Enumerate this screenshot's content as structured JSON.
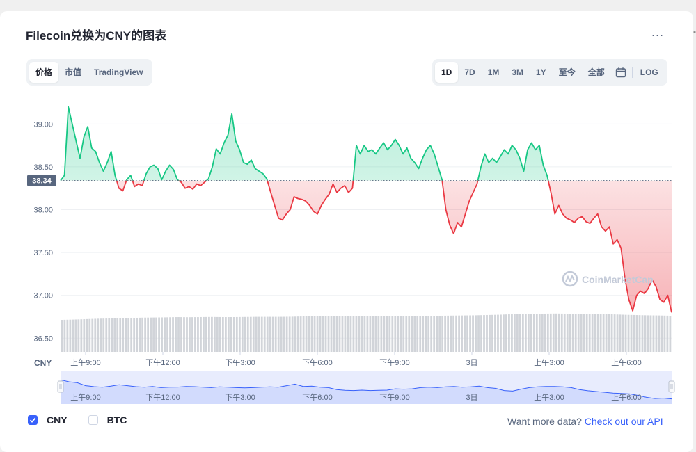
{
  "header": {
    "title": "Filecoin兑换为CNY的图表",
    "more_label": "..."
  },
  "edge_mark": "-",
  "view_tabs": [
    {
      "label": "价格",
      "active": true
    },
    {
      "label": "市值",
      "active": false
    },
    {
      "label": "TradingView",
      "active": false
    }
  ],
  "range_tabs": [
    {
      "label": "1D",
      "active": true
    },
    {
      "label": "7D",
      "active": false
    },
    {
      "label": "1M",
      "active": false
    },
    {
      "label": "3M",
      "active": false
    },
    {
      "label": "1Y",
      "active": false
    },
    {
      "label": "至今",
      "active": false
    },
    {
      "label": "全部",
      "active": false
    }
  ],
  "calendar_icon": "calendar-icon",
  "log_label": "LOG",
  "chart_data": {
    "type": "line",
    "currency_label": "CNY",
    "yticks": [
      "39.00",
      "38.50",
      "38.00",
      "37.50",
      "37.00",
      "36.50"
    ],
    "ylim": [
      36.34,
      39.23
    ],
    "reference_value": 38.34,
    "reference_label": "38.34",
    "xtick_labels": [
      "上午9:00",
      "下午12:00",
      "下午3:00",
      "下午6:00",
      "下午9:00",
      "3日",
      "上午3:00",
      "上午6:00"
    ],
    "watermark": "CoinMarketCap",
    "colors": {
      "up": "#16c784",
      "down": "#ea3943",
      "volume": "#c9ccd2",
      "navigator": "#3861fb"
    },
    "series": {
      "price": [
        [
          0,
          38.34
        ],
        [
          0.6,
          38.4
        ],
        [
          1.2,
          39.2
        ],
        [
          1.8,
          39.0
        ],
        [
          2.4,
          38.8
        ],
        [
          3.0,
          38.6
        ],
        [
          3.6,
          38.85
        ],
        [
          4.2,
          38.97
        ],
        [
          4.8,
          38.72
        ],
        [
          5.4,
          38.68
        ],
        [
          6.0,
          38.55
        ],
        [
          6.6,
          38.45
        ],
        [
          7.2,
          38.55
        ],
        [
          7.8,
          38.68
        ],
        [
          8.4,
          38.4
        ],
        [
          9.0,
          38.25
        ],
        [
          9.6,
          38.22
        ],
        [
          10.2,
          38.35
        ],
        [
          10.8,
          38.4
        ],
        [
          11.4,
          38.27
        ],
        [
          12.0,
          38.3
        ],
        [
          12.6,
          38.28
        ],
        [
          13.2,
          38.42
        ],
        [
          13.8,
          38.5
        ],
        [
          14.4,
          38.52
        ],
        [
          15.0,
          38.48
        ],
        [
          15.6,
          38.35
        ],
        [
          16.2,
          38.45
        ],
        [
          16.8,
          38.52
        ],
        [
          17.4,
          38.47
        ],
        [
          18.0,
          38.35
        ],
        [
          18.6,
          38.32
        ],
        [
          19.2,
          38.25
        ],
        [
          19.8,
          38.27
        ],
        [
          20.4,
          38.24
        ],
        [
          21.0,
          38.3
        ],
        [
          21.6,
          38.28
        ],
        [
          22.2,
          38.32
        ],
        [
          22.8,
          38.36
        ],
        [
          23.4,
          38.5
        ],
        [
          24.0,
          38.71
        ],
        [
          24.6,
          38.65
        ],
        [
          25.2,
          38.78
        ],
        [
          25.8,
          38.87
        ],
        [
          26.4,
          39.12
        ],
        [
          27.0,
          38.8
        ],
        [
          27.6,
          38.7
        ],
        [
          28.2,
          38.55
        ],
        [
          28.8,
          38.53
        ],
        [
          29.4,
          38.58
        ],
        [
          30.0,
          38.48
        ],
        [
          30.6,
          38.45
        ],
        [
          31.2,
          38.42
        ],
        [
          31.8,
          38.36
        ],
        [
          32.4,
          38.2
        ],
        [
          33.0,
          38.05
        ],
        [
          33.6,
          37.9
        ],
        [
          34.2,
          37.88
        ],
        [
          34.8,
          37.95
        ],
        [
          35.4,
          38.0
        ],
        [
          36.0,
          38.15
        ],
        [
          36.6,
          38.13
        ],
        [
          37.2,
          38.12
        ],
        [
          37.8,
          38.1
        ],
        [
          38.4,
          38.05
        ],
        [
          39.0,
          37.98
        ],
        [
          39.6,
          37.95
        ],
        [
          40.2,
          38.05
        ],
        [
          40.8,
          38.12
        ],
        [
          41.4,
          38.18
        ],
        [
          42.0,
          38.3
        ],
        [
          42.6,
          38.2
        ],
        [
          43.2,
          38.25
        ],
        [
          43.8,
          38.28
        ],
        [
          44.4,
          38.2
        ],
        [
          45.0,
          38.25
        ],
        [
          45.6,
          38.75
        ],
        [
          46.2,
          38.65
        ],
        [
          46.8,
          38.75
        ],
        [
          47.4,
          38.68
        ],
        [
          48.0,
          38.7
        ],
        [
          48.6,
          38.65
        ],
        [
          49.2,
          38.72
        ],
        [
          49.8,
          38.78
        ],
        [
          50.4,
          38.7
        ],
        [
          51.0,
          38.75
        ],
        [
          51.6,
          38.82
        ],
        [
          52.2,
          38.75
        ],
        [
          52.8,
          38.65
        ],
        [
          53.4,
          38.72
        ],
        [
          54.0,
          38.6
        ],
        [
          54.6,
          38.55
        ],
        [
          55.2,
          38.48
        ],
        [
          55.8,
          38.6
        ],
        [
          56.4,
          38.7
        ],
        [
          57.0,
          38.75
        ],
        [
          57.6,
          38.65
        ],
        [
          58.2,
          38.5
        ],
        [
          58.8,
          38.35
        ],
        [
          59.4,
          38.0
        ],
        [
          60.0,
          37.82
        ],
        [
          60.6,
          37.72
        ],
        [
          61.2,
          37.85
        ],
        [
          61.8,
          37.8
        ],
        [
          62.4,
          37.95
        ],
        [
          63.0,
          38.1
        ],
        [
          63.6,
          38.2
        ],
        [
          64.2,
          38.3
        ],
        [
          64.8,
          38.5
        ],
        [
          65.4,
          38.65
        ],
        [
          66.0,
          38.55
        ],
        [
          66.6,
          38.6
        ],
        [
          67.2,
          38.55
        ],
        [
          67.8,
          38.62
        ],
        [
          68.4,
          38.7
        ],
        [
          69.0,
          38.65
        ],
        [
          69.6,
          38.75
        ],
        [
          70.2,
          38.7
        ],
        [
          70.8,
          38.6
        ],
        [
          71.4,
          38.45
        ],
        [
          72.0,
          38.7
        ],
        [
          72.6,
          38.78
        ],
        [
          73.2,
          38.7
        ],
        [
          73.8,
          38.75
        ],
        [
          74.4,
          38.52
        ],
        [
          75.0,
          38.4
        ],
        [
          75.6,
          38.2
        ],
        [
          76.2,
          37.95
        ],
        [
          76.8,
          38.05
        ],
        [
          77.4,
          37.95
        ],
        [
          78.0,
          37.9
        ],
        [
          78.6,
          37.88
        ],
        [
          79.2,
          37.85
        ],
        [
          79.8,
          37.9
        ],
        [
          80.4,
          37.92
        ],
        [
          81.0,
          37.86
        ],
        [
          81.6,
          37.84
        ],
        [
          82.2,
          37.9
        ],
        [
          82.8,
          37.95
        ],
        [
          83.4,
          37.8
        ],
        [
          84.0,
          37.75
        ],
        [
          84.6,
          37.8
        ],
        [
          85.2,
          37.6
        ],
        [
          85.8,
          37.65
        ],
        [
          86.4,
          37.55
        ],
        [
          87.0,
          37.2
        ],
        [
          87.6,
          36.95
        ],
        [
          88.2,
          36.82
        ],
        [
          88.8,
          37.0
        ],
        [
          89.4,
          37.05
        ],
        [
          90.0,
          37.02
        ],
        [
          90.6,
          37.08
        ],
        [
          91.2,
          37.18
        ],
        [
          91.8,
          37.1
        ],
        [
          92.4,
          36.95
        ],
        [
          93.0,
          36.92
        ],
        [
          93.6,
          37.0
        ],
        [
          94.2,
          36.8
        ]
      ],
      "volume_relative": [
        0.5,
        0.52,
        0.55,
        0.58,
        0.6,
        0.62,
        0.64,
        0.66,
        0.67,
        0.68,
        0.7,
        0.69,
        0.7,
        0.71,
        0.7,
        0.7,
        0.71,
        0.72,
        0.72,
        0.72,
        0.73,
        0.75,
        0.76,
        0.78,
        0.77,
        0.78,
        0.78,
        0.79,
        0.8,
        0.8,
        0.8,
        0.79,
        0.8,
        0.8,
        0.81,
        0.82,
        0.83,
        0.85,
        0.87,
        0.9,
        0.92,
        0.93,
        0.95,
        0.96,
        0.95,
        0.95,
        0.94,
        0.92,
        0.9,
        0.87,
        0.85,
        0.83,
        0.82,
        0.8
      ],
      "navigator_relative": [
        1.1,
        1.0,
        0.95,
        0.8,
        0.75,
        0.72,
        0.78,
        0.85,
        0.8,
        0.75,
        0.72,
        0.76,
        0.7,
        0.72,
        0.73,
        0.76,
        0.75,
        0.72,
        0.7,
        0.74,
        0.72,
        0.7,
        0.69,
        0.7,
        0.72,
        0.74,
        0.72,
        0.8,
        0.88,
        0.76,
        0.78,
        0.72,
        0.7,
        0.6,
        0.56,
        0.55,
        0.57,
        0.55,
        0.56,
        0.57,
        0.64,
        0.62,
        0.64,
        0.7,
        0.72,
        0.7,
        0.74,
        0.76,
        0.72,
        0.74,
        0.78,
        0.7,
        0.66,
        0.55,
        0.52,
        0.62,
        0.7,
        0.74,
        0.76,
        0.76,
        0.74,
        0.7,
        0.6,
        0.54,
        0.5,
        0.46,
        0.42,
        0.4,
        0.38,
        0.3,
        0.2,
        0.14,
        0.16,
        0.12
      ]
    }
  },
  "legend": [
    {
      "label": "CNY",
      "checked": true
    },
    {
      "label": "BTC",
      "checked": false
    }
  ],
  "api": {
    "prompt": "Want more data?",
    "link": "Check out our API"
  }
}
